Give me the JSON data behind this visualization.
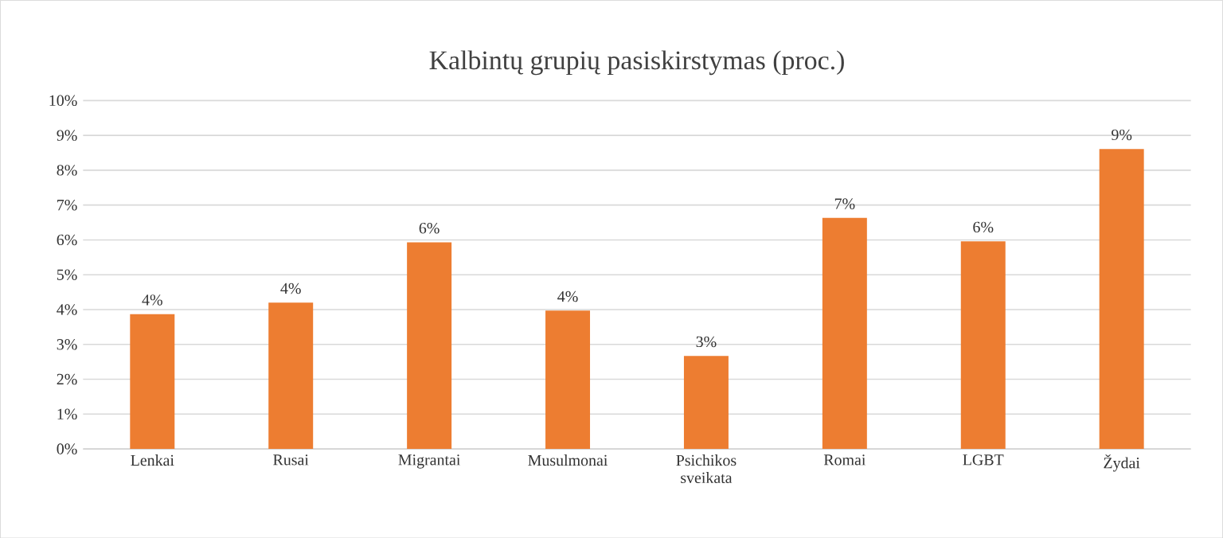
{
  "chart_data": {
    "type": "bar",
    "title": "Kalbintų grupių pasiskirstymas (proc.)",
    "categories": [
      "Lenkai",
      "Rusai",
      "Migrantai",
      "Musulmonai",
      "Psichikos sveikata",
      "Romai",
      "LGBT",
      "Žydai"
    ],
    "values": [
      3.87,
      4.2,
      5.93,
      3.97,
      2.67,
      6.63,
      5.96,
      8.61
    ],
    "value_labels": [
      "4%",
      "4%",
      "6%",
      "4%",
      "3%",
      "7%",
      "6%",
      "9%"
    ],
    "color": "#ed7d31",
    "ylim": [
      0,
      10
    ],
    "yticks": [
      {
        "value": 0,
        "label": "0%"
      },
      {
        "value": 1,
        "label": "1%"
      },
      {
        "value": 2,
        "label": "2%"
      },
      {
        "value": 3,
        "label": "3%"
      },
      {
        "value": 4,
        "label": "4%"
      },
      {
        "value": 5,
        "label": "5%"
      },
      {
        "value": 6,
        "label": "6%"
      },
      {
        "value": 7,
        "label": "7%"
      },
      {
        "value": 8,
        "label": "8%"
      },
      {
        "value": 9,
        "label": "9%"
      },
      {
        "value": 10,
        "label": "10%"
      }
    ],
    "grid": "y"
  }
}
